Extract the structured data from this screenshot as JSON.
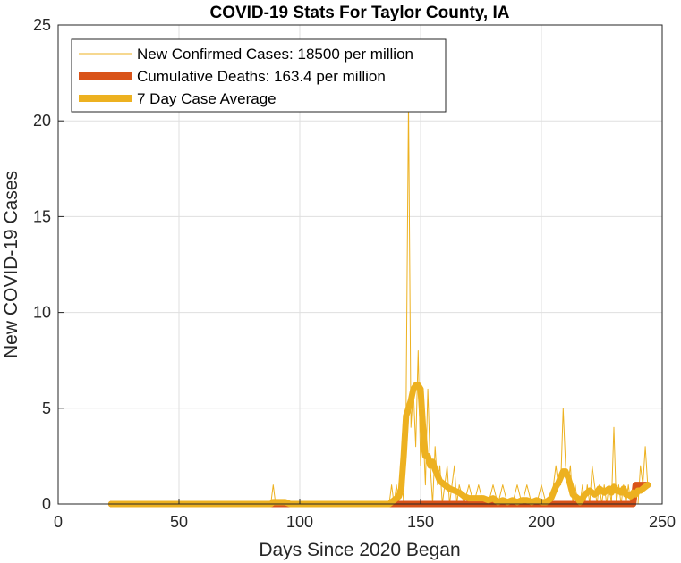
{
  "chart_data": {
    "type": "line",
    "title": "COVID-19 Stats For Taylor County, IA",
    "xlabel": "Days Since 2020 Began",
    "ylabel": "New COVID-19 Cases",
    "xlim": [
      0,
      250
    ],
    "ylim": [
      0,
      25
    ],
    "xticks": [
      0,
      50,
      100,
      150,
      200,
      250
    ],
    "yticks": [
      0,
      5,
      10,
      15,
      20,
      25
    ],
    "grid": true,
    "legend_position": "top-left",
    "series": [
      {
        "name": "New Confirmed Cases: 18500 per million",
        "color": "#EDB120",
        "style": "thin",
        "x": [
          22,
          40,
          60,
          80,
          86,
          88,
          89,
          90,
          92,
          94,
          96,
          100,
          110,
          120,
          130,
          137,
          138,
          139,
          140,
          141,
          142,
          143,
          144,
          145,
          146,
          147,
          148,
          149,
          150,
          151,
          152,
          153,
          154,
          155,
          156,
          157,
          158,
          159,
          160,
          161,
          162,
          163,
          164,
          165,
          166,
          168,
          170,
          172,
          174,
          176,
          178,
          180,
          182,
          184,
          186,
          188,
          190,
          192,
          194,
          196,
          198,
          200,
          202,
          204,
          205,
          206,
          207,
          208,
          209,
          210,
          211,
          212,
          213,
          214,
          215,
          216,
          217,
          218,
          219,
          220,
          221,
          222,
          223,
          224,
          225,
          226,
          227,
          228,
          229,
          230,
          231,
          232,
          233,
          234,
          235,
          236,
          237,
          238,
          239,
          240,
          241,
          242,
          243,
          244
        ],
        "y": [
          0,
          0,
          0,
          0,
          0,
          0,
          1,
          0,
          0,
          0,
          0,
          0,
          0,
          0,
          0,
          0,
          1,
          0,
          1,
          0,
          2,
          0,
          5,
          21,
          4,
          6,
          3,
          8,
          2,
          4,
          1,
          6,
          2,
          0,
          3,
          1,
          2,
          0,
          1,
          2,
          0,
          1,
          2,
          0,
          1,
          0,
          1,
          0,
          1,
          0,
          0,
          1,
          0,
          1,
          0,
          0,
          1,
          0,
          1,
          0,
          0,
          1,
          0,
          0,
          1,
          2,
          1,
          1,
          5,
          2,
          1,
          2,
          0,
          1,
          0,
          0,
          1,
          0,
          1,
          0,
          2,
          1,
          0,
          1,
          0,
          1,
          0,
          1,
          0,
          4,
          0,
          1,
          0,
          1,
          0,
          1,
          0,
          1,
          0,
          0,
          2,
          1,
          3,
          1
        ]
      },
      {
        "name": "Cumulative Deaths: 163.4 per million",
        "color": "#D95319",
        "style": "thick",
        "x": [
          22,
          100,
          140,
          150,
          200,
          238,
          239,
          240,
          244
        ],
        "y": [
          0,
          0,
          0,
          0,
          0,
          0,
          1,
          1,
          1
        ]
      },
      {
        "name": "7 Day Case Average",
        "color": "#EDB120",
        "style": "thick",
        "x": [
          22,
          40,
          60,
          80,
          86,
          88,
          89,
          90,
          92,
          94,
          96,
          100,
          110,
          120,
          130,
          137,
          138,
          139,
          140,
          141,
          142,
          143,
          144,
          145,
          146,
          147,
          148,
          149,
          150,
          151,
          152,
          153,
          154,
          155,
          156,
          157,
          158,
          160,
          162,
          164,
          166,
          168,
          170,
          172,
          174,
          176,
          178,
          180,
          182,
          184,
          186,
          188,
          190,
          192,
          194,
          196,
          198,
          200,
          202,
          204,
          205,
          206,
          207,
          208,
          209,
          210,
          211,
          212,
          213,
          214,
          215,
          216,
          217,
          218,
          219,
          220,
          221,
          222,
          223,
          224,
          225,
          226,
          227,
          228,
          229,
          230,
          231,
          232,
          233,
          234,
          235,
          236,
          237,
          238,
          239,
          240,
          241,
          242,
          243,
          244
        ],
        "y": [
          0,
          0,
          0,
          0,
          0,
          0,
          0.1,
          0.1,
          0.1,
          0.1,
          0,
          0,
          0,
          0,
          0,
          0,
          0.1,
          0.2,
          0.3,
          0.4,
          0.8,
          2.5,
          4.6,
          5,
          5.4,
          6,
          6.2,
          6.2,
          6,
          4,
          2.5,
          2.5,
          2,
          2.2,
          1.8,
          1.5,
          1.2,
          1,
          0.8,
          0.7,
          0.6,
          0.4,
          0.3,
          0.3,
          0.3,
          0.3,
          0.2,
          0.3,
          0.1,
          0.2,
          0.1,
          0.2,
          0.1,
          0.2,
          0.2,
          0.1,
          0.2,
          0.1,
          0.1,
          0.3,
          0.6,
          0.9,
          1.1,
          1.4,
          1.7,
          1.7,
          1.4,
          1,
          0.5,
          0.4,
          0.3,
          0.1,
          0.3,
          0.5,
          0.6,
          0.7,
          0.6,
          0.5,
          0.6,
          0.8,
          0.7,
          0.6,
          0.7,
          0.8,
          0.6,
          0.9,
          0.7,
          0.7,
          0.6,
          0.8,
          0.5,
          0.5,
          0.4,
          0.6,
          0.5,
          0.7,
          0.7,
          0.8,
          0.9,
          1
        ]
      }
    ]
  }
}
